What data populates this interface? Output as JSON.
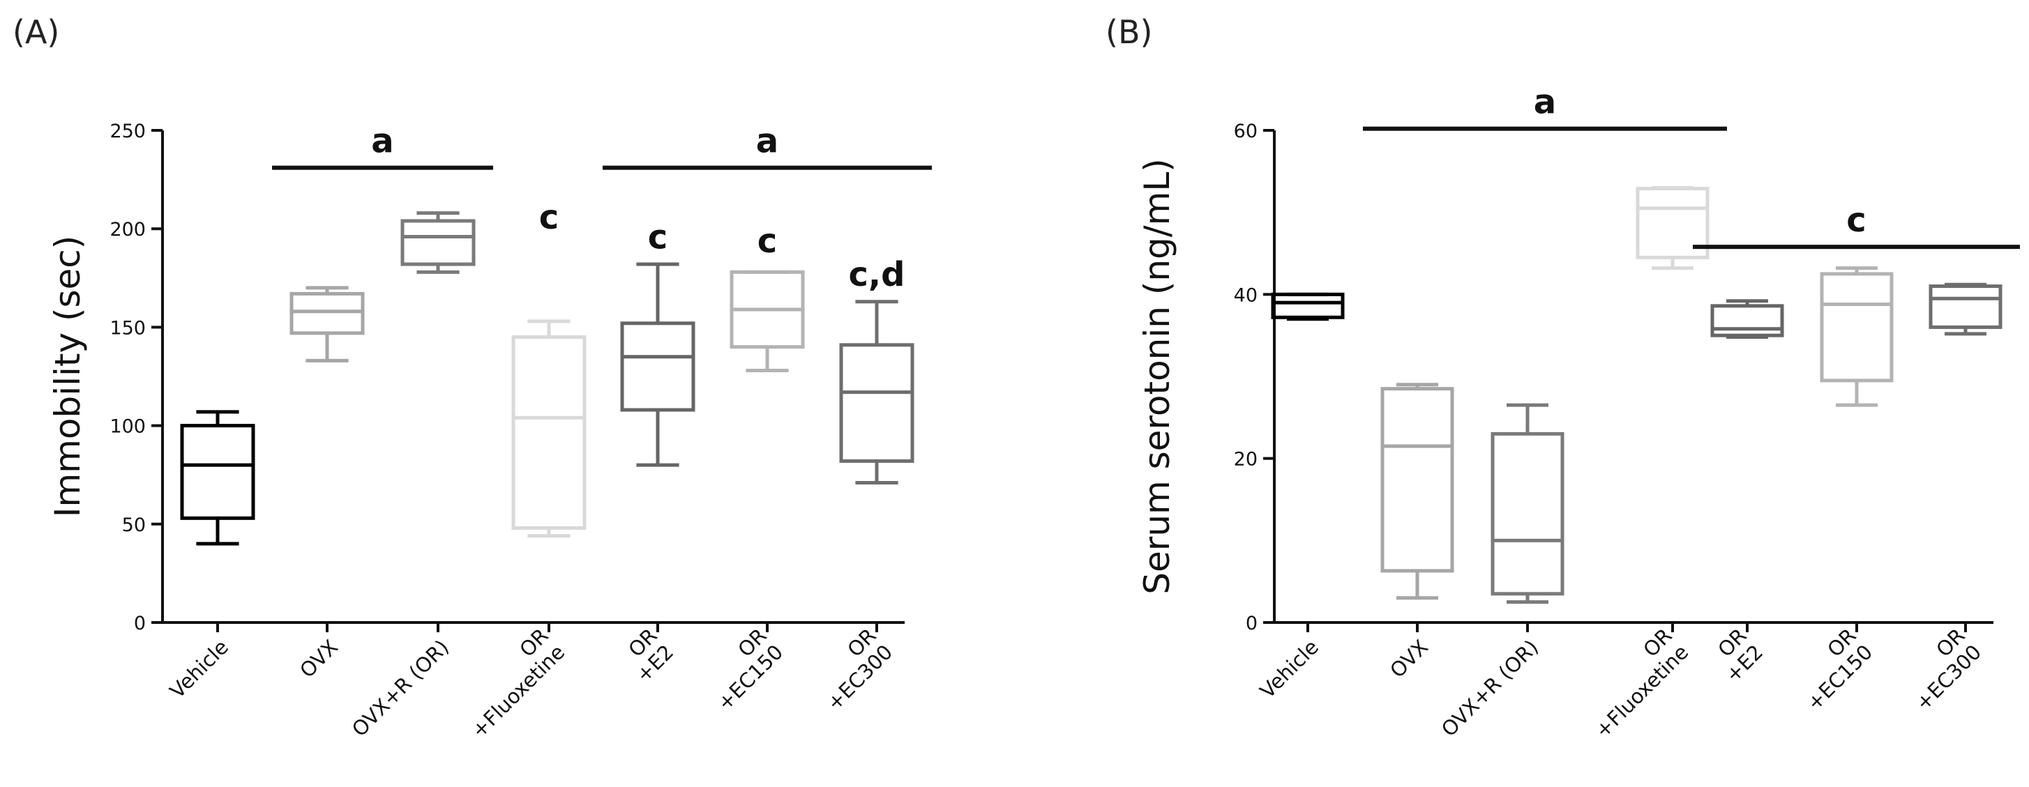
{
  "chart_data": [
    {
      "type": "box",
      "panel_label": "(A)",
      "ylabel": "Immobility (sec)",
      "ylim": [
        0,
        250
      ],
      "yticks": [
        "0",
        "50",
        "100",
        "150",
        "200",
        "250"
      ],
      "ytick_values": [
        0,
        50,
        100,
        150,
        200,
        250
      ],
      "categories": [
        [
          "Vehicle"
        ],
        [
          "OVX"
        ],
        [
          "OVX+R (OR)"
        ],
        [
          "OR",
          "+Fluoxetine"
        ],
        [
          "OR",
          "+E2"
        ],
        [
          "OR",
          "+EC150"
        ],
        [
          "OR",
          "+EC300"
        ]
      ],
      "colors": [
        "#000000",
        "#a6a6a6",
        "#7a7a7a",
        "#d9d9d9",
        "#666666",
        "#b3b3b3",
        "#6e6e6e"
      ],
      "boxes": [
        {
          "min": 40,
          "q1": 53,
          "median": 80,
          "q3": 100,
          "max": 107
        },
        {
          "min": 133,
          "q1": 147,
          "median": 158,
          "q3": 167,
          "max": 170
        },
        {
          "min": 178,
          "q1": 182,
          "median": 196,
          "q3": 204,
          "max": 208
        },
        {
          "min": 44,
          "q1": 48,
          "median": 104,
          "q3": 145,
          "max": 153
        },
        {
          "min": 80,
          "q1": 108,
          "median": 135,
          "q3": 152,
          "max": 182
        },
        {
          "min": 128,
          "q1": 140,
          "median": 159,
          "q3": 178,
          "max": 178
        },
        {
          "min": 71,
          "q1": 82,
          "median": 117,
          "q3": 141,
          "max": 163
        }
      ],
      "significance_bars": [
        {
          "from": 1,
          "to": 2,
          "y": 231,
          "label": "a"
        },
        {
          "from": 4,
          "to": 6,
          "y": 231,
          "label": "a"
        }
      ],
      "letters": [
        {
          "index": 3,
          "y": 200,
          "label": "c"
        },
        {
          "index": 4,
          "y": 190,
          "label": "c"
        },
        {
          "index": 5,
          "y": 188,
          "label": "c"
        },
        {
          "index": 6,
          "y": 171,
          "label": "c,d"
        }
      ]
    },
    {
      "type": "box",
      "panel_label": "(B)",
      "ylabel": "Serum serotonin (ng/mL)",
      "ylim": [
        0,
        60
      ],
      "yticks": [
        "0",
        "20",
        "40",
        "60"
      ],
      "ytick_values": [
        0,
        20,
        40,
        60
      ],
      "categories": [
        [
          "Vehicle"
        ],
        [
          "OVX"
        ],
        [
          "OVX+R (OR)"
        ],
        [
          "OR",
          "+Fluoxetine"
        ],
        [
          "OR",
          "+E2"
        ],
        [
          "OR",
          "+EC150"
        ],
        [
          "OR",
          "+EC300"
        ]
      ],
      "colors": [
        "#000000",
        "#a6a6a6",
        "#7a7a7a",
        "#d9d9d9",
        "#666666",
        "#b3b3b3",
        "#6e6e6e"
      ],
      "boxes": [
        {
          "min": 37,
          "q1": 37.2,
          "median": 39,
          "q3": 40,
          "max": 40
        },
        {
          "min": 3,
          "q1": 6.3,
          "median": 21.5,
          "q3": 28.5,
          "max": 29
        },
        {
          "min": 2.5,
          "q1": 3.5,
          "median": 10,
          "q3": 23,
          "max": 26.5
        },
        {
          "min": 43.2,
          "q1": 44.5,
          "median": 50.5,
          "q3": 52.9,
          "max": 53
        },
        {
          "min": 34.8,
          "q1": 35,
          "median": 35.8,
          "q3": 38.6,
          "max": 39.2
        },
        {
          "min": 26.5,
          "q1": 29.5,
          "median": 38.8,
          "q3": 42.5,
          "max": 43.2
        },
        {
          "min": 35.2,
          "q1": 36,
          "median": 39.5,
          "q3": 41,
          "max": 41.2
        }
      ],
      "significance_bars": [
        {
          "from": 1,
          "to": 3,
          "y": 60.2,
          "label": "a"
        },
        {
          "from": 4,
          "to": 6,
          "y": 45.8,
          "label": "c"
        }
      ],
      "letters": []
    }
  ]
}
